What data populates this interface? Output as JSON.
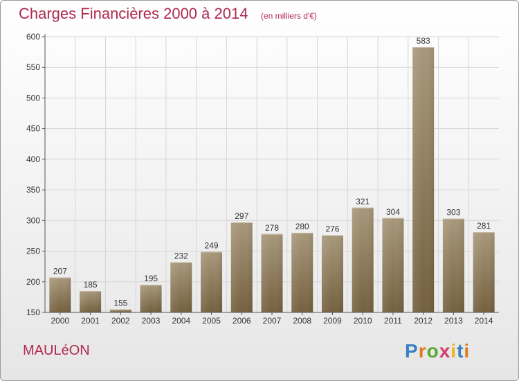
{
  "header": {
    "title": "Charges Financières 2000 à 2014",
    "subtitle": "(en milliers d'€)"
  },
  "footer": {
    "city": "MAULéON",
    "logo": "Proxiti"
  },
  "colors": {
    "bar_light": "#a8987b",
    "bar_dark": "#74603e",
    "title": "#b0284f",
    "grid": "#d6d6d6",
    "axis": "#555555"
  },
  "chart_data": {
    "type": "bar",
    "title": "Charges Financières 2000 à 2014",
    "subtitle": "(en milliers d'€)",
    "categories": [
      "2000",
      "2001",
      "2002",
      "2003",
      "2004",
      "2005",
      "2006",
      "2007",
      "2008",
      "2009",
      "2010",
      "2011",
      "2012",
      "2013",
      "2014"
    ],
    "values": [
      207,
      185,
      155,
      195,
      232,
      249,
      297,
      278,
      280,
      276,
      321,
      304,
      583,
      303,
      281
    ],
    "ylim": [
      150,
      600
    ],
    "yticks": [
      150,
      200,
      250,
      300,
      350,
      400,
      450,
      500,
      550,
      600
    ],
    "grid": true,
    "legend": "none"
  }
}
